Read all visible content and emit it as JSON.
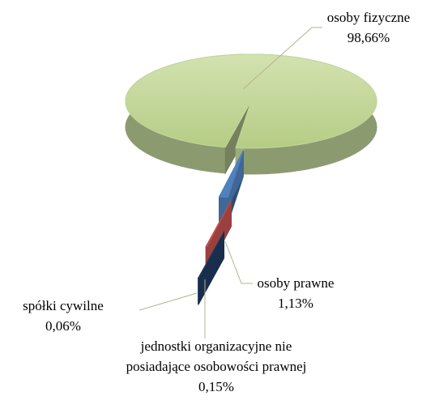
{
  "chart_data": {
    "type": "pie",
    "categories": [
      "osoby fizyczne",
      "osoby prawne",
      "jednostki organizacyjne nie posiadające osobowości prawnej",
      "spółki cywilne"
    ],
    "values": [
      98.66,
      1.13,
      0.15,
      0.06
    ],
    "value_labels": [
      "98,66%",
      "1,13%",
      "0,15%",
      "0,06%"
    ],
    "colors": [
      "#c3d69b",
      "#4f81bd",
      "#c0504d",
      "#1f3a5f"
    ]
  }
}
